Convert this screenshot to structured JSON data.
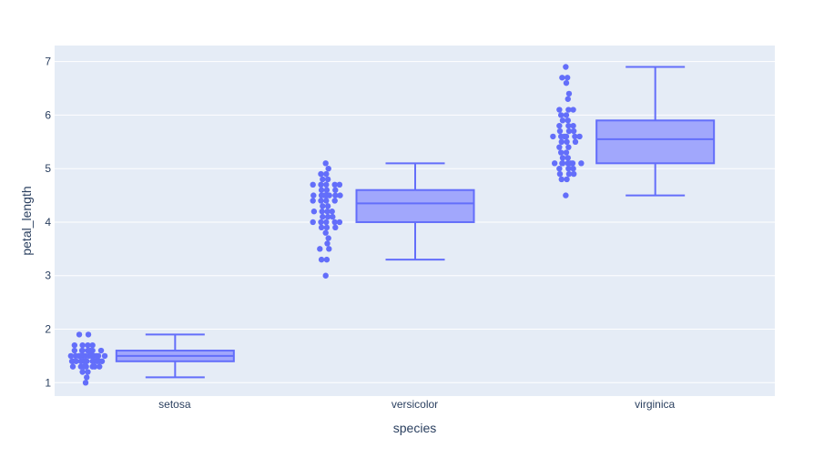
{
  "chart_data": {
    "type": "box",
    "xlabel": "species",
    "ylabel": "petal_length",
    "categories": [
      "setosa",
      "versicolor",
      "virginica"
    ],
    "ylim": [
      0.75,
      7.3
    ],
    "yticks": [
      1,
      2,
      3,
      4,
      5,
      6,
      7
    ],
    "ytick_labels": [
      "1",
      "2",
      "3",
      "4",
      "5",
      "6",
      "7"
    ],
    "grid": true,
    "points": "all",
    "colors": {
      "plot_bg": "#e5ecf6",
      "grid": "#ffffff",
      "series": "#636efa",
      "box_fill": "#a1a7fc"
    },
    "boxes": [
      {
        "category": "setosa",
        "min": 1.1,
        "q1": 1.4,
        "median": 1.5,
        "q3": 1.6,
        "max": 1.9,
        "points": [
          1.0,
          1.1,
          1.2,
          1.2,
          1.3,
          1.3,
          1.3,
          1.3,
          1.3,
          1.3,
          1.3,
          1.4,
          1.4,
          1.4,
          1.4,
          1.4,
          1.4,
          1.4,
          1.4,
          1.4,
          1.4,
          1.4,
          1.4,
          1.4,
          1.5,
          1.5,
          1.5,
          1.5,
          1.5,
          1.5,
          1.5,
          1.5,
          1.5,
          1.5,
          1.5,
          1.5,
          1.5,
          1.6,
          1.6,
          1.6,
          1.6,
          1.6,
          1.6,
          1.6,
          1.7,
          1.7,
          1.7,
          1.7,
          1.9,
          1.9
        ]
      },
      {
        "category": "versicolor",
        "min": 3.3,
        "q1": 4.0,
        "median": 4.35,
        "q3": 4.6,
        "max": 5.1,
        "points": [
          3.0,
          3.3,
          3.3,
          3.5,
          3.5,
          3.6,
          3.7,
          3.8,
          3.9,
          3.9,
          3.9,
          4.0,
          4.0,
          4.0,
          4.0,
          4.0,
          4.1,
          4.1,
          4.1,
          4.2,
          4.2,
          4.2,
          4.2,
          4.3,
          4.3,
          4.4,
          4.4,
          4.4,
          4.4,
          4.5,
          4.5,
          4.5,
          4.5,
          4.5,
          4.5,
          4.5,
          4.6,
          4.6,
          4.6,
          4.7,
          4.7,
          4.7,
          4.7,
          4.7,
          4.8,
          4.8,
          4.9,
          4.9,
          5.0,
          5.1
        ]
      },
      {
        "category": "virginica",
        "min": 4.5,
        "q1": 5.1,
        "median": 5.55,
        "q3": 5.9,
        "max": 6.9,
        "points": [
          4.5,
          4.8,
          4.8,
          4.9,
          4.9,
          4.9,
          5.0,
          5.0,
          5.0,
          5.1,
          5.1,
          5.1,
          5.1,
          5.1,
          5.1,
          5.1,
          5.2,
          5.2,
          5.3,
          5.3,
          5.4,
          5.4,
          5.5,
          5.5,
          5.5,
          5.6,
          5.6,
          5.6,
          5.6,
          5.6,
          5.6,
          5.7,
          5.7,
          5.7,
          5.8,
          5.8,
          5.8,
          5.9,
          5.9,
          6.0,
          6.0,
          6.1,
          6.1,
          6.1,
          6.3,
          6.4,
          6.6,
          6.7,
          6.7,
          6.9
        ]
      }
    ]
  }
}
